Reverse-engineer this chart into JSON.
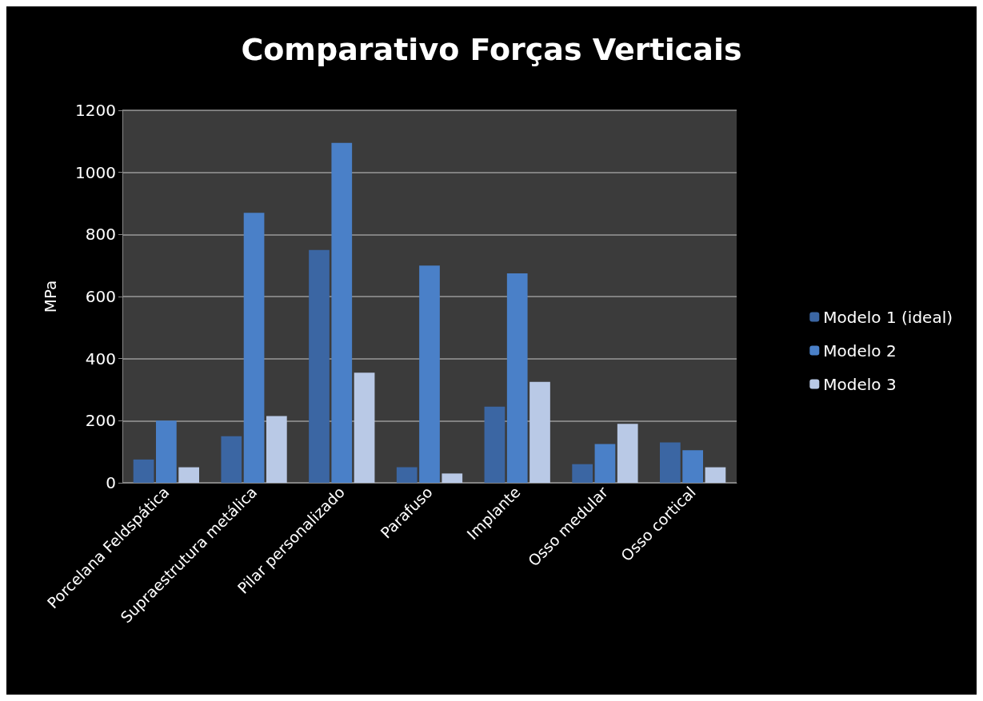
{
  "chart_data": {
    "type": "bar",
    "title": "Comparativo Forças Verticais",
    "ylabel": "MPa",
    "categories": [
      "Porcelana Feldspática",
      "Supraestrutura metálica",
      "Pilar personalizado",
      "Parafuso",
      "Implante",
      "Osso medular",
      "Osso cortical"
    ],
    "series": [
      {
        "name": "Modelo 1 (ideal)",
        "color": "#3b66a3",
        "values": [
          75,
          150,
          750,
          50,
          245,
          60,
          130
        ]
      },
      {
        "name": "Modelo 2",
        "color": "#4a80c8",
        "values": [
          200,
          870,
          1095,
          700,
          675,
          125,
          105
        ]
      },
      {
        "name": "Modelo 3",
        "color": "#b9c9e6",
        "values": [
          50,
          215,
          355,
          30,
          325,
          190,
          50
        ]
      }
    ],
    "ylim": [
      0,
      1200
    ],
    "yticks": [
      0,
      200,
      400,
      600,
      800,
      1000,
      1200
    ],
    "grid": "y",
    "legend": "right"
  }
}
